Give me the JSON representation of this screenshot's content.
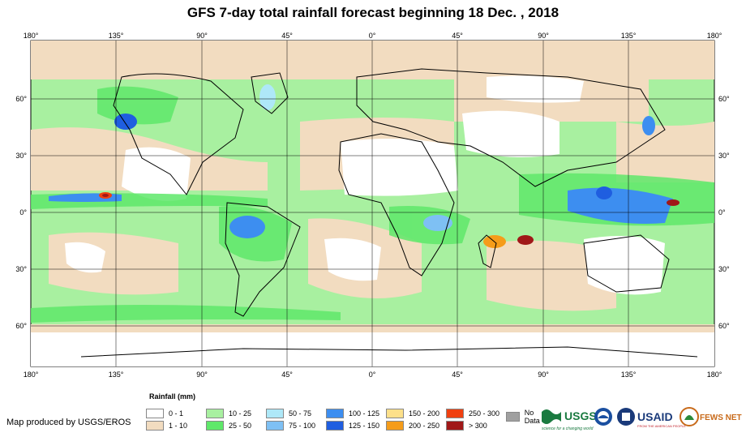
{
  "title": "GFS 7-day total rainfall forecast beginning 18 Dec. , 2018",
  "longitude_labels": [
    "180°",
    "135°",
    "90°",
    "45°",
    "0°",
    "45°",
    "90°",
    "135°",
    "180°"
  ],
  "latitude_labels": [
    "60°",
    "30°",
    "0°",
    "30°",
    "60°"
  ],
  "legend": {
    "title": "Rainfall (mm)",
    "classes": [
      {
        "label": "0 - 1",
        "color": "#ffffff"
      },
      {
        "label": "1 - 10",
        "color": "#f2dcc0"
      },
      {
        "label": "10 - 25",
        "color": "#a8f0a0"
      },
      {
        "label": "25 - 50",
        "color": "#5fe86a"
      },
      {
        "label": "50 - 75",
        "color": "#aee8f8"
      },
      {
        "label": "75 - 100",
        "color": "#7ec0f4"
      },
      {
        "label": "100 - 125",
        "color": "#3d8ef0"
      },
      {
        "label": "125 - 150",
        "color": "#1f5ee0"
      },
      {
        "label": "150 - 200",
        "color": "#fde08a"
      },
      {
        "label": "200 - 250",
        "color": "#f59c1a"
      },
      {
        "label": "250 - 300",
        "color": "#f04010"
      },
      {
        "label": "> 300",
        "color": "#a01818"
      },
      {
        "label": "No Data",
        "color": "#a0a0a0"
      }
    ]
  },
  "credit": "Map produced by USGS/EROS",
  "logos": {
    "usgs": "USGS",
    "usgs_tagline": "science for a changing world",
    "usaid": "USAID",
    "usaid_tagline": "FROM THE AMERICAN PEOPLE",
    "fewsnet": "FEWS NET"
  }
}
